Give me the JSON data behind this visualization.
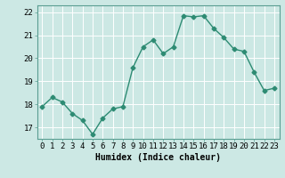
{
  "x": [
    0,
    1,
    2,
    3,
    4,
    5,
    6,
    7,
    8,
    9,
    10,
    11,
    12,
    13,
    14,
    15,
    16,
    17,
    18,
    19,
    20,
    21,
    22,
    23
  ],
  "y": [
    17.9,
    18.3,
    18.1,
    17.6,
    17.3,
    16.7,
    17.4,
    17.8,
    17.9,
    19.6,
    20.5,
    20.8,
    20.2,
    20.5,
    21.85,
    21.8,
    21.85,
    21.3,
    20.9,
    20.4,
    20.3,
    19.4,
    18.6,
    18.7
  ],
  "line_color": "#2d8b73",
  "marker": "D",
  "marker_size": 2.5,
  "bg_color": "#cce8e4",
  "grid_color": "#ffffff",
  "xlabel": "Humidex (Indice chaleur)",
  "xlim": [
    -0.5,
    23.5
  ],
  "ylim": [
    16.5,
    22.3
  ],
  "yticks": [
    17,
    18,
    19,
    20,
    21,
    22
  ],
  "xticks": [
    0,
    1,
    2,
    3,
    4,
    5,
    6,
    7,
    8,
    9,
    10,
    11,
    12,
    13,
    14,
    15,
    16,
    17,
    18,
    19,
    20,
    21,
    22,
    23
  ],
  "xlabel_fontsize": 7,
  "tick_fontsize": 6.5,
  "line_width": 1.0
}
